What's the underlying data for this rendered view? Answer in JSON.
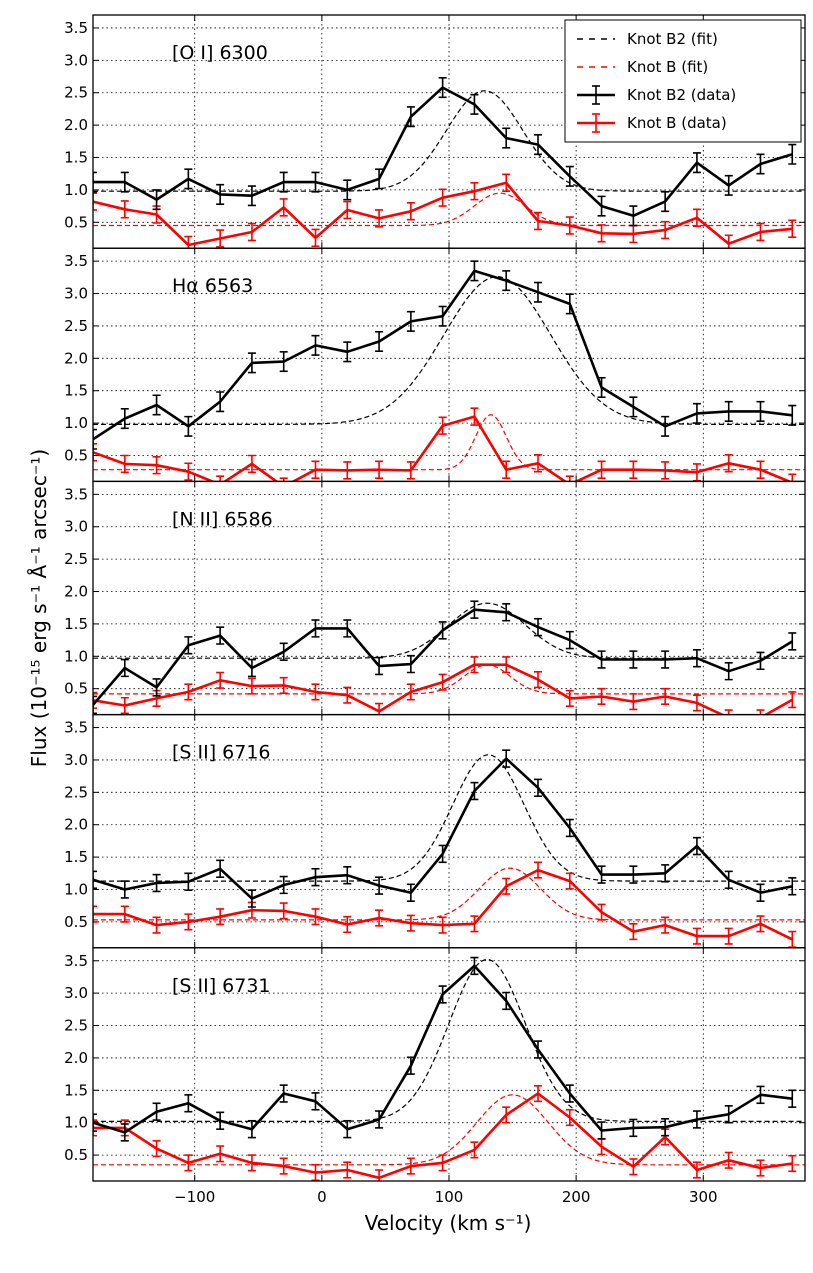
{
  "chart_data": {
    "type": "line",
    "xlabel": "Velocity (km s⁻¹)",
    "ylabel": "Flux (10⁻¹⁵ erg s⁻¹ Å⁻¹ arcsec⁻¹)",
    "xlim": [
      -180,
      380
    ],
    "ylim": [
      0.1,
      3.7
    ],
    "xticks": [
      -100,
      0,
      100,
      200,
      300
    ],
    "yticks": [
      0.5,
      1.0,
      1.5,
      2.0,
      2.5,
      3.0,
      3.5
    ],
    "grid": true,
    "legend": {
      "position": "top-right",
      "entries": [
        {
          "label": "Knot B2 (fit)",
          "color": "#000000",
          "style": "dashed"
        },
        {
          "label": "Knot B (fit)",
          "color": "#ff0000",
          "style": "dashed"
        },
        {
          "label": "Knot B2 (data)",
          "color": "#000000",
          "style": "errorbar"
        },
        {
          "label": "Knot B (data)",
          "color": "#ff0000",
          "style": "errorbar"
        }
      ]
    },
    "x": [
      -180,
      -155,
      -130,
      -105,
      -80,
      -55,
      -30,
      -5,
      20,
      45,
      70,
      95,
      120,
      145,
      170,
      195,
      220,
      245,
      270,
      295,
      320,
      345,
      370
    ],
    "panels": [
      {
        "label": "[O I] 6300",
        "b2_data": [
          1.12,
          1.12,
          0.85,
          1.17,
          0.93,
          0.91,
          1.12,
          1.12,
          1.0,
          1.17,
          2.13,
          2.58,
          2.32,
          1.8,
          1.7,
          1.21,
          0.75,
          0.6,
          0.82,
          1.42,
          1.07,
          1.4,
          1.55
        ],
        "b2_err": 0.15,
        "b_data": [
          0.82,
          0.7,
          0.62,
          0.15,
          0.25,
          0.35,
          0.73,
          0.26,
          0.69,
          0.56,
          0.67,
          0.88,
          0.98,
          1.11,
          0.52,
          0.45,
          0.33,
          0.32,
          0.38,
          0.57,
          0.17,
          0.35,
          0.4
        ],
        "b_err": 0.13,
        "b2_fit": {
          "base": 0.98,
          "amp": 1.55,
          "center": 128,
          "sigma": 30
        },
        "b_fit": {
          "base": 0.45,
          "amp": 0.5,
          "center": 140,
          "sigma": 20
        }
      },
      {
        "label": "Hα 6563",
        "b2_data": [
          0.75,
          1.07,
          1.28,
          0.95,
          1.33,
          1.93,
          1.95,
          2.2,
          2.1,
          2.26,
          2.57,
          2.65,
          3.35,
          3.2,
          3.02,
          2.84,
          1.55,
          1.25,
          0.95,
          1.15,
          1.18,
          1.18,
          1.12
        ],
        "b2_err": 0.15,
        "b_data": [
          0.55,
          0.37,
          0.35,
          0.25,
          0.05,
          0.37,
          0.02,
          0.28,
          0.27,
          0.28,
          0.27,
          0.96,
          1.1,
          0.28,
          0.38,
          0.05,
          0.28,
          0.28,
          0.27,
          0.24,
          0.38,
          0.28,
          0.08
        ],
        "b_err": 0.13,
        "b2_fit": {
          "base": 0.98,
          "amp": 2.28,
          "center": 138,
          "sigma": 42
        },
        "b_fit": {
          "base": 0.28,
          "amp": 0.85,
          "center": 133,
          "sigma": 12
        }
      },
      {
        "label": "[N II] 6586",
        "b2_data": [
          0.25,
          0.82,
          0.52,
          1.17,
          1.32,
          0.82,
          1.07,
          1.43,
          1.43,
          0.85,
          0.88,
          1.4,
          1.72,
          1.68,
          1.45,
          1.25,
          0.95,
          0.95,
          0.95,
          0.97,
          0.77,
          0.93,
          1.23
        ],
        "b2_err": 0.13,
        "b_data": [
          0.32,
          0.24,
          0.35,
          0.45,
          0.63,
          0.54,
          0.55,
          0.45,
          0.4,
          0.15,
          0.45,
          0.6,
          0.87,
          0.87,
          0.64,
          0.35,
          0.38,
          0.3,
          0.38,
          0.28,
          0.05,
          0.05,
          0.33
        ],
        "b_err": 0.12,
        "b2_fit": {
          "base": 0.97,
          "amp": 0.85,
          "center": 130,
          "sigma": 30
        },
        "b_fit": {
          "base": 0.42,
          "amp": 0.45,
          "center": 130,
          "sigma": 18
        }
      },
      {
        "label": "[S II] 6716",
        "b2_data": [
          1.15,
          1.0,
          1.1,
          1.12,
          1.32,
          0.86,
          1.07,
          1.19,
          1.22,
          1.06,
          0.95,
          1.55,
          2.52,
          3.02,
          2.57,
          1.95,
          1.23,
          1.23,
          1.25,
          1.67,
          1.15,
          0.95,
          1.05
        ],
        "b2_err": 0.13,
        "b_data": [
          0.62,
          0.62,
          0.45,
          0.5,
          0.58,
          0.68,
          0.67,
          0.58,
          0.46,
          0.56,
          0.48,
          0.45,
          0.47,
          1.05,
          1.3,
          1.13,
          0.65,
          0.35,
          0.45,
          0.28,
          0.28,
          0.47,
          0.23
        ],
        "b_err": 0.12,
        "b2_fit": {
          "base": 1.13,
          "amp": 1.95,
          "center": 131,
          "sigma": 28
        },
        "b_fit": {
          "base": 0.53,
          "amp": 0.8,
          "center": 148,
          "sigma": 24
        }
      },
      {
        "label": "[S II] 6731",
        "b2_data": [
          1.0,
          0.85,
          1.17,
          1.3,
          1.03,
          0.9,
          1.45,
          1.33,
          0.9,
          1.05,
          1.88,
          2.98,
          3.42,
          2.88,
          2.13,
          1.45,
          0.88,
          0.92,
          0.93,
          1.05,
          1.13,
          1.43,
          1.37
        ],
        "b2_err": 0.13,
        "b_data": [
          0.92,
          0.92,
          0.6,
          0.38,
          0.52,
          0.38,
          0.33,
          0.23,
          0.27,
          0.15,
          0.33,
          0.38,
          0.58,
          1.12,
          1.45,
          1.08,
          0.63,
          0.32,
          0.78,
          0.27,
          0.42,
          0.3,
          0.37
        ],
        "b_err": 0.12,
        "b2_fit": {
          "base": 1.02,
          "amp": 2.5,
          "center": 130,
          "sigma": 30
        },
        "b_fit": {
          "base": 0.35,
          "amp": 1.08,
          "center": 150,
          "sigma": 28
        }
      }
    ]
  }
}
